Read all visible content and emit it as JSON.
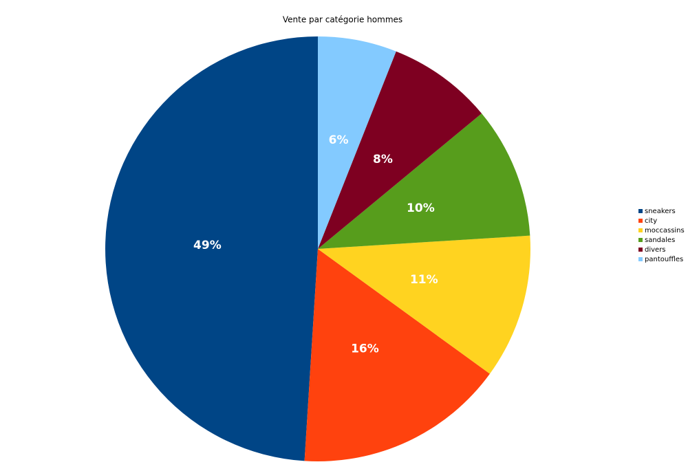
{
  "chart_data": {
    "type": "pie",
    "title": "Vente par catégorie hommes",
    "categories": [
      "sneakers",
      "city",
      "moccassins",
      "sandales",
      "divers",
      "pantouffles"
    ],
    "values": [
      49,
      16,
      11,
      10,
      8,
      6
    ],
    "value_labels": [
      "49%",
      "16%",
      "11%",
      "10%",
      "8%",
      "6%"
    ],
    "colors": [
      "#004586",
      "#ff420e",
      "#ffd320",
      "#579d1c",
      "#7e0021",
      "#83caff"
    ],
    "direction": "counterclockwise",
    "start": "top",
    "legend": "right"
  }
}
